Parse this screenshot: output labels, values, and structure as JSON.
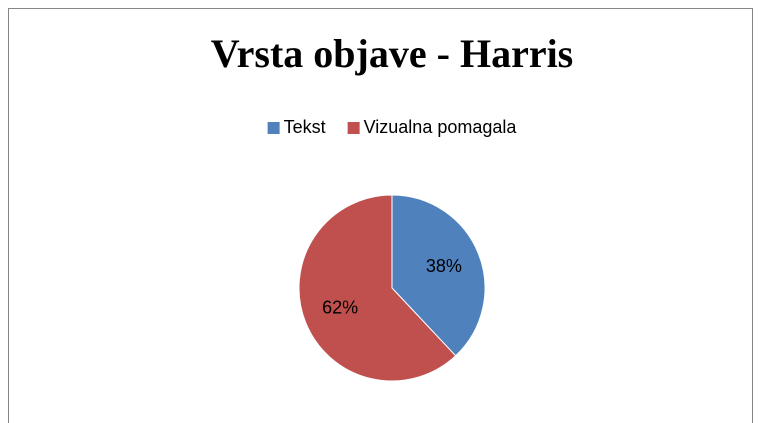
{
  "chart_data": {
    "type": "pie",
    "title": "Vrsta objave - Harris",
    "categories": [
      "Tekst",
      "Vizualna pomagala"
    ],
    "values": [
      38,
      62
    ],
    "value_labels": [
      "38%",
      "62%"
    ],
    "colors": [
      "#4f81bd",
      "#c0504d"
    ],
    "legend": "top"
  }
}
